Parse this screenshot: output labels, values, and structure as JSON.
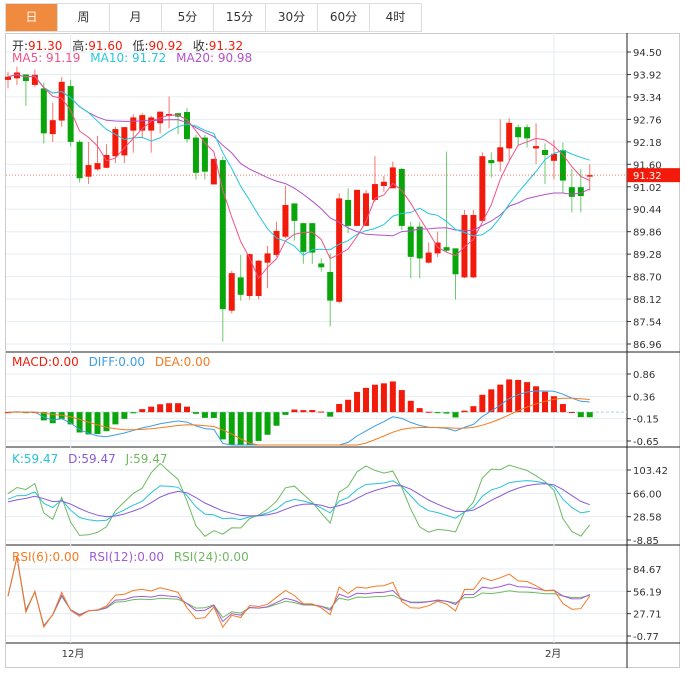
{
  "tabs": [
    "日",
    "周",
    "月",
    "5分",
    "15分",
    "30分",
    "60分",
    "4时"
  ],
  "active_tab": 0,
  "ohlc_bar": {
    "open_label": "开:",
    "open": "91.30",
    "high_label": "高:",
    "high": "91.60",
    "low_label": "低:",
    "low": "90.92",
    "close_label": "收:",
    "close": "91.32"
  },
  "ma_bar": {
    "ma5": "MA5: 91.19",
    "ma10": "MA10: 91.72",
    "ma20": "MA20: 90.98"
  },
  "macd_bar": {
    "macd": "MACD:0.00",
    "diff": "DIFF:0.00",
    "dea": "DEA:0.00"
  },
  "kdj_bar": {
    "k": "K:59.47",
    "d": "D:59.47",
    "j": "J:59.47"
  },
  "rsi_bar": {
    "rsi6": "RSI(6):0.00",
    "rsi12": "RSI(12):0.00",
    "rsi24": "RSI(24):0.00"
  },
  "current_price": "91.32",
  "colors": {
    "up": "#f21b0b",
    "down": "#0aa50a",
    "ma5": "#f0538a",
    "ma10": "#27c6da",
    "ma20": "#b451c8",
    "diff": "#3d9ee5",
    "dea": "#f57b22",
    "k": "#29c2d6",
    "d": "#8a5cd6",
    "j": "#6fba60",
    "rsi6": "#f57b22",
    "rsi12": "#a15ad6",
    "rsi24": "#6fba60",
    "tab_active": "#f08a3e"
  },
  "chart_data": {
    "type": "candlestick",
    "price_ticks": [
      "94.50",
      "93.92",
      "93.34",
      "92.76",
      "92.18",
      "91.60",
      "91.02",
      "90.44",
      "89.86",
      "89.28",
      "88.70",
      "88.12",
      "87.54",
      "86.96"
    ],
    "price_range": [
      86.96,
      94.5
    ],
    "macd_ticks": [
      "0.86",
      "0.36",
      "-0.15",
      "-0.65"
    ],
    "macd_range": [
      -0.65,
      0.86
    ],
    "kdj_ticks": [
      "103.42",
      "66.00",
      "28.58",
      "-8.85"
    ],
    "kdj_range": [
      -8.85,
      103.42
    ],
    "rsi_ticks": [
      "84.67",
      "56.19",
      "27.71",
      "-0.77"
    ],
    "rsi_range": [
      -0.77,
      84.67
    ],
    "x_labels": [
      {
        "index": 7,
        "text": "12月"
      },
      {
        "index": 61,
        "text": "2月"
      }
    ],
    "ohlc": [
      [
        93.78,
        93.99,
        93.56,
        93.86
      ],
      [
        93.82,
        94.12,
        93.65,
        93.97
      ],
      [
        93.92,
        93.92,
        93.11,
        93.75
      ],
      [
        93.65,
        94.05,
        93.6,
        93.91
      ],
      [
        93.56,
        93.71,
        92.14,
        92.4
      ],
      [
        92.38,
        93.19,
        92.18,
        92.74
      ],
      [
        92.73,
        93.85,
        92.57,
        93.73
      ],
      [
        93.62,
        93.78,
        92.06,
        92.18
      ],
      [
        92.18,
        92.23,
        91.13,
        91.24
      ],
      [
        91.28,
        92.18,
        91.09,
        91.58
      ],
      [
        91.47,
        92.33,
        91.44,
        91.63
      ],
      [
        91.51,
        92.12,
        91.5,
        91.84
      ],
      [
        91.81,
        92.57,
        91.63,
        92.51
      ],
      [
        91.83,
        92.56,
        91.63,
        92.56
      ],
      [
        92.47,
        92.89,
        91.9,
        92.81
      ],
      [
        92.47,
        92.92,
        92.27,
        92.87
      ],
      [
        92.47,
        92.85,
        91.9,
        92.81
      ],
      [
        92.66,
        92.96,
        92.4,
        92.96
      ],
      [
        92.85,
        93.35,
        92.53,
        92.9
      ],
      [
        92.92,
        92.92,
        92.38,
        92.83
      ],
      [
        92.95,
        93.05,
        92.16,
        92.25
      ],
      [
        92.29,
        92.36,
        91.21,
        91.38
      ],
      [
        92.29,
        92.36,
        91.21,
        91.41
      ],
      [
        91.08,
        91.74,
        91.08,
        91.74
      ],
      [
        91.71,
        91.8,
        87.02,
        87.86
      ],
      [
        87.82,
        88.85,
        87.75,
        88.79
      ],
      [
        88.68,
        89.26,
        88.08,
        88.23
      ],
      [
        88.2,
        89.3,
        88.11,
        89.28
      ],
      [
        88.2,
        89.13,
        88.11,
        89.11
      ],
      [
        89.06,
        89.49,
        88.4,
        89.3
      ],
      [
        89.26,
        90.12,
        89.21,
        89.88
      ],
      [
        89.73,
        91.04,
        89.69,
        90.55
      ],
      [
        90.59,
        90.59,
        89.63,
        90.14
      ],
      [
        90.08,
        90.09,
        89.03,
        89.34
      ],
      [
        90.08,
        90.09,
        89.03,
        89.32
      ],
      [
        89.04,
        89.17,
        88.83,
        88.94
      ],
      [
        88.82,
        89.3,
        87.41,
        88.08
      ],
      [
        88.05,
        90.85,
        88.01,
        90.72
      ],
      [
        90.68,
        90.98,
        89.82,
        90.01
      ],
      [
        90.01,
        90.94,
        90.01,
        90.94
      ],
      [
        90.01,
        90.94,
        90.01,
        90.85
      ],
      [
        90.68,
        91.81,
        90.63,
        91.09
      ],
      [
        91.04,
        91.3,
        90.89,
        91.15
      ],
      [
        90.98,
        91.67,
        90.98,
        91.52
      ],
      [
        91.48,
        91.51,
        89.9,
        90.01
      ],
      [
        89.99,
        90.12,
        88.66,
        89.21
      ],
      [
        89.99,
        90.1,
        88.66,
        89.17
      ],
      [
        89.06,
        89.58,
        89.04,
        89.32
      ],
      [
        89.3,
        89.86,
        89.21,
        89.58
      ],
      [
        89.46,
        91.93,
        89.34,
        89.37
      ],
      [
        89.43,
        89.43,
        88.11,
        88.76
      ],
      [
        88.68,
        90.42,
        88.66,
        90.29
      ],
      [
        88.68,
        90.42,
        88.66,
        90.29
      ],
      [
        90.14,
        91.91,
        90.12,
        91.81
      ],
      [
        91.71,
        91.91,
        91.26,
        91.63
      ],
      [
        91.67,
        92.76,
        91.41,
        92.04
      ],
      [
        92.01,
        92.79,
        91.71,
        92.67
      ],
      [
        92.56,
        92.63,
        92.07,
        92.3
      ],
      [
        92.56,
        92.63,
        92.04,
        92.27
      ],
      [
        92.01,
        92.66,
        91.61,
        92.07
      ],
      [
        91.97,
        92.14,
        91.09,
        91.84
      ],
      [
        91.69,
        92.23,
        91.21,
        91.87
      ],
      [
        91.97,
        92.16,
        90.87,
        91.18
      ],
      [
        91.01,
        91.48,
        90.36,
        90.76
      ],
      [
        91.01,
        91.48,
        90.36,
        90.78
      ],
      [
        91.3,
        91.6,
        90.92,
        91.32
      ]
    ]
  }
}
